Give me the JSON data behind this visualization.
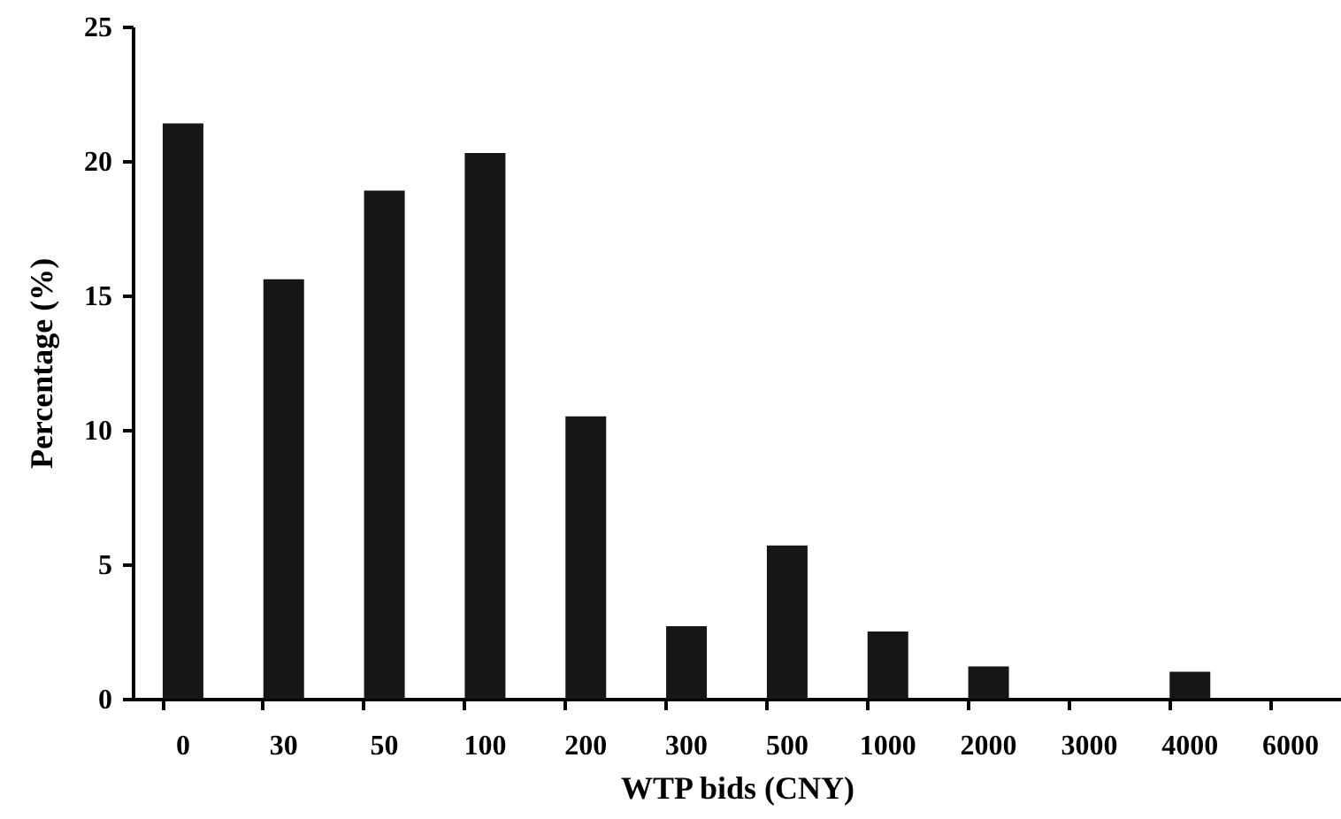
{
  "chart_data": {
    "type": "bar",
    "xlabel": "WTP bids (CNY)",
    "ylabel": "Percentage (%)",
    "categories": [
      "0",
      "30",
      "50",
      "100",
      "200",
      "300",
      "500",
      "1000",
      "2000",
      "3000",
      "4000",
      "6000"
    ],
    "values": [
      21.4,
      15.6,
      18.9,
      20.3,
      10.5,
      2.7,
      5.7,
      2.5,
      1.2,
      0,
      1.0,
      0
    ],
    "color": "#161616",
    "ylim": [
      0,
      25
    ],
    "yticks": [
      0,
      5,
      10,
      15,
      20,
      25
    ],
    "grid": false
  }
}
